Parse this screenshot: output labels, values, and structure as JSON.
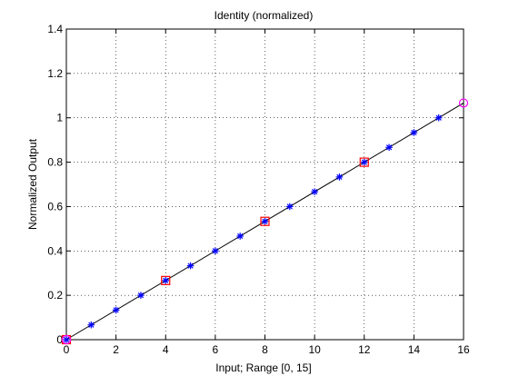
{
  "chart_data": {
    "type": "line",
    "title": "Identity (normalized)",
    "xlabel": "Input; Range [0, 15]",
    "ylabel": "Normalized Output",
    "xlim": [
      0,
      16
    ],
    "ylim": [
      0,
      1.4
    ],
    "grid": true,
    "x_ticks": [
      0,
      2,
      4,
      6,
      8,
      10,
      12,
      14,
      16
    ],
    "y_ticks": [
      0,
      0.2,
      0.4,
      0.6,
      0.8,
      1,
      1.2,
      1.4
    ],
    "x_tick_labels": [
      "0",
      "2",
      "4",
      "6",
      "8",
      "10",
      "12",
      "14",
      "16"
    ],
    "y_tick_labels": [
      "0",
      "0.2",
      "0.4",
      "0.6",
      "0.8",
      "1",
      "1.2",
      "1.4"
    ],
    "series": [
      {
        "style": "line",
        "color": "#000000",
        "x": [
          0,
          16
        ],
        "y": [
          0,
          1.0667
        ]
      },
      {
        "style": "star-markers",
        "color": "#0000ff",
        "x": [
          0,
          1,
          2,
          3,
          4,
          5,
          6,
          7,
          8,
          9,
          10,
          11,
          12,
          13,
          14,
          15
        ],
        "y": [
          0,
          0.0667,
          0.1333,
          0.2,
          0.2667,
          0.3333,
          0.4,
          0.4667,
          0.5333,
          0.6,
          0.6667,
          0.7333,
          0.8,
          0.8667,
          0.9333,
          1.0
        ]
      },
      {
        "style": "square-markers",
        "color": "#ff0000",
        "x": [
          0,
          4,
          8,
          12
        ],
        "y": [
          0,
          0.2667,
          0.5333,
          0.8
        ]
      },
      {
        "style": "circle-markers",
        "color": "#ff00ff",
        "x": [
          0,
          16
        ],
        "y": [
          0,
          1.0667
        ]
      }
    ]
  }
}
